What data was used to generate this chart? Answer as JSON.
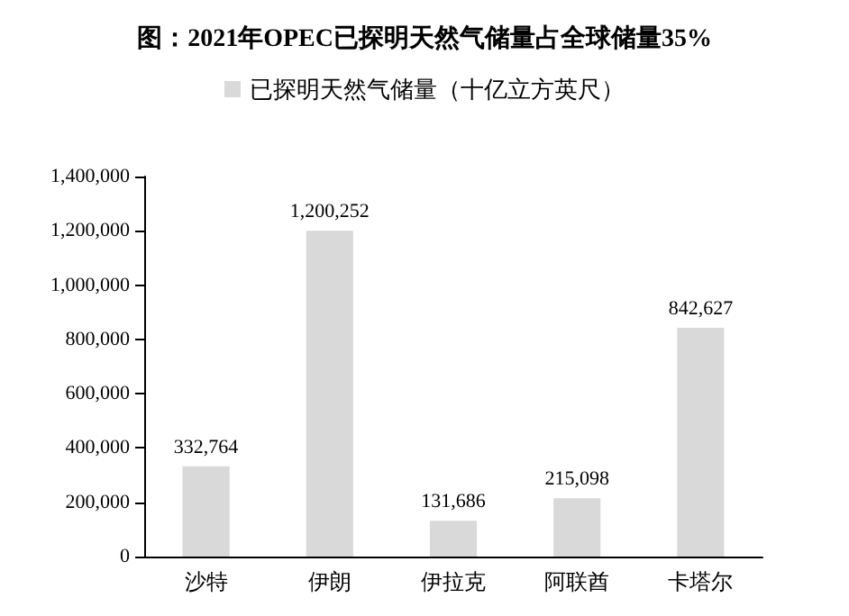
{
  "chart_data": {
    "type": "bar",
    "title": "图：2021年OPEC已探明天然气储量占全球储量35%",
    "categories": [
      "沙特",
      "伊朗",
      "伊拉克",
      "阿联酋",
      "卡塔尔"
    ],
    "series": [
      {
        "name": "已探明天然气储量（十亿立方英尺）",
        "color": "#d9d9d9",
        "values": [
          332764,
          1200252,
          131686,
          215098,
          842627
        ],
        "value_labels": [
          "332,764",
          "1,200,252",
          "131,686",
          "215,098",
          "842,627"
        ]
      }
    ],
    "ylim": [
      0,
      1400000
    ],
    "yticks": [
      0,
      {
        "value": 200000,
        "label": "200,000"
      },
      {
        "value": 400000,
        "label": "400,000"
      },
      {
        "value": 600000,
        "label": "600,000"
      },
      {
        "value": 800000,
        "label": "800,000"
      },
      {
        "value": 1000000,
        "label": "1,000,000"
      },
      {
        "value": 1200000,
        "label": "1,200,000"
      },
      {
        "value": 1400000,
        "label": "1,400,000"
      }
    ],
    "legend": "top",
    "grid": false
  }
}
